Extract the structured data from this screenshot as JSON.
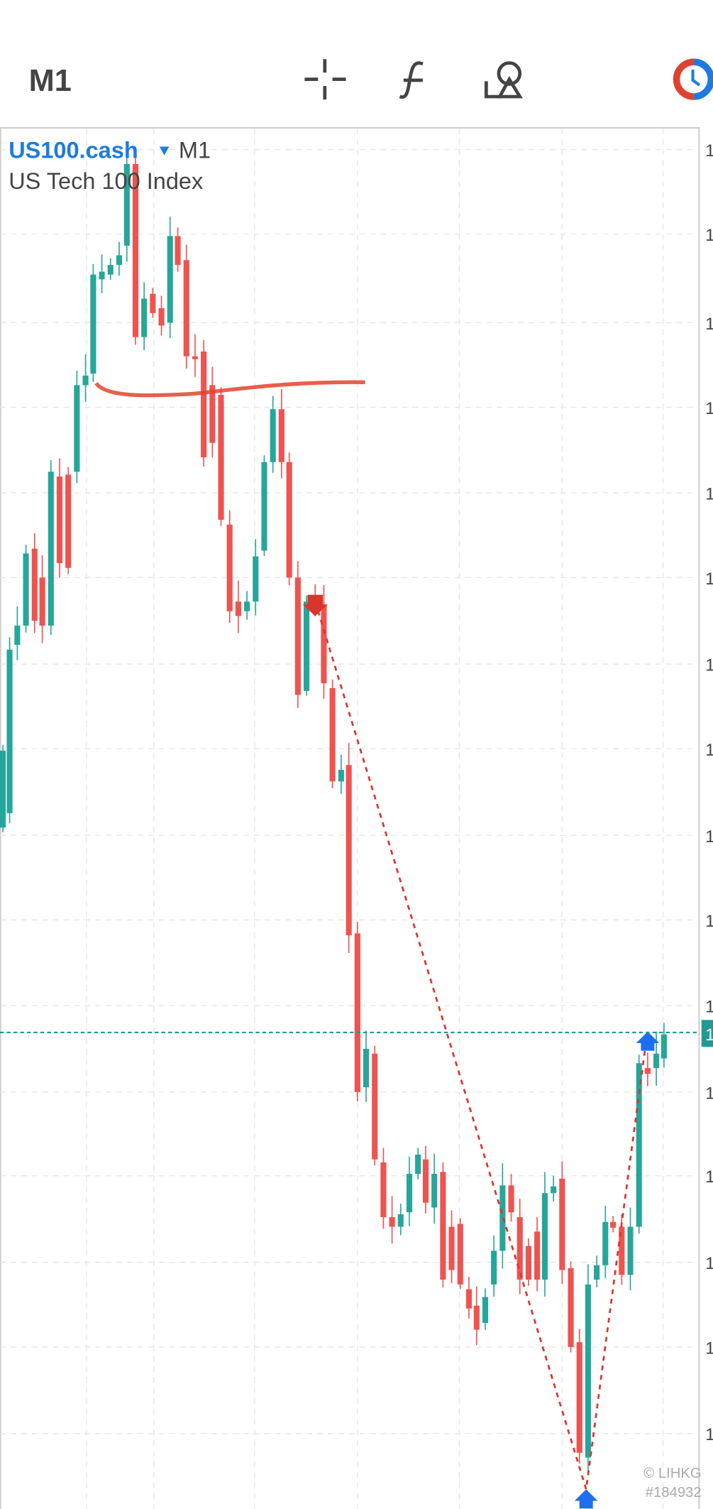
{
  "toolbar": {
    "timeframe": "M1"
  },
  "chart": {
    "symbol": "US100.cash",
    "timeframe": "M1",
    "description": "US Tech 100 Index",
    "price_axis": {
      "labels": [
        "1",
        "1",
        "1",
        "1",
        "1",
        "1",
        "1",
        "1",
        "1",
        "1",
        "1",
        "1",
        "1",
        "1",
        "1",
        "1"
      ],
      "current": "1"
    },
    "watermark": {
      "site": "© LIHKG",
      "id": "#184932"
    }
  }
}
